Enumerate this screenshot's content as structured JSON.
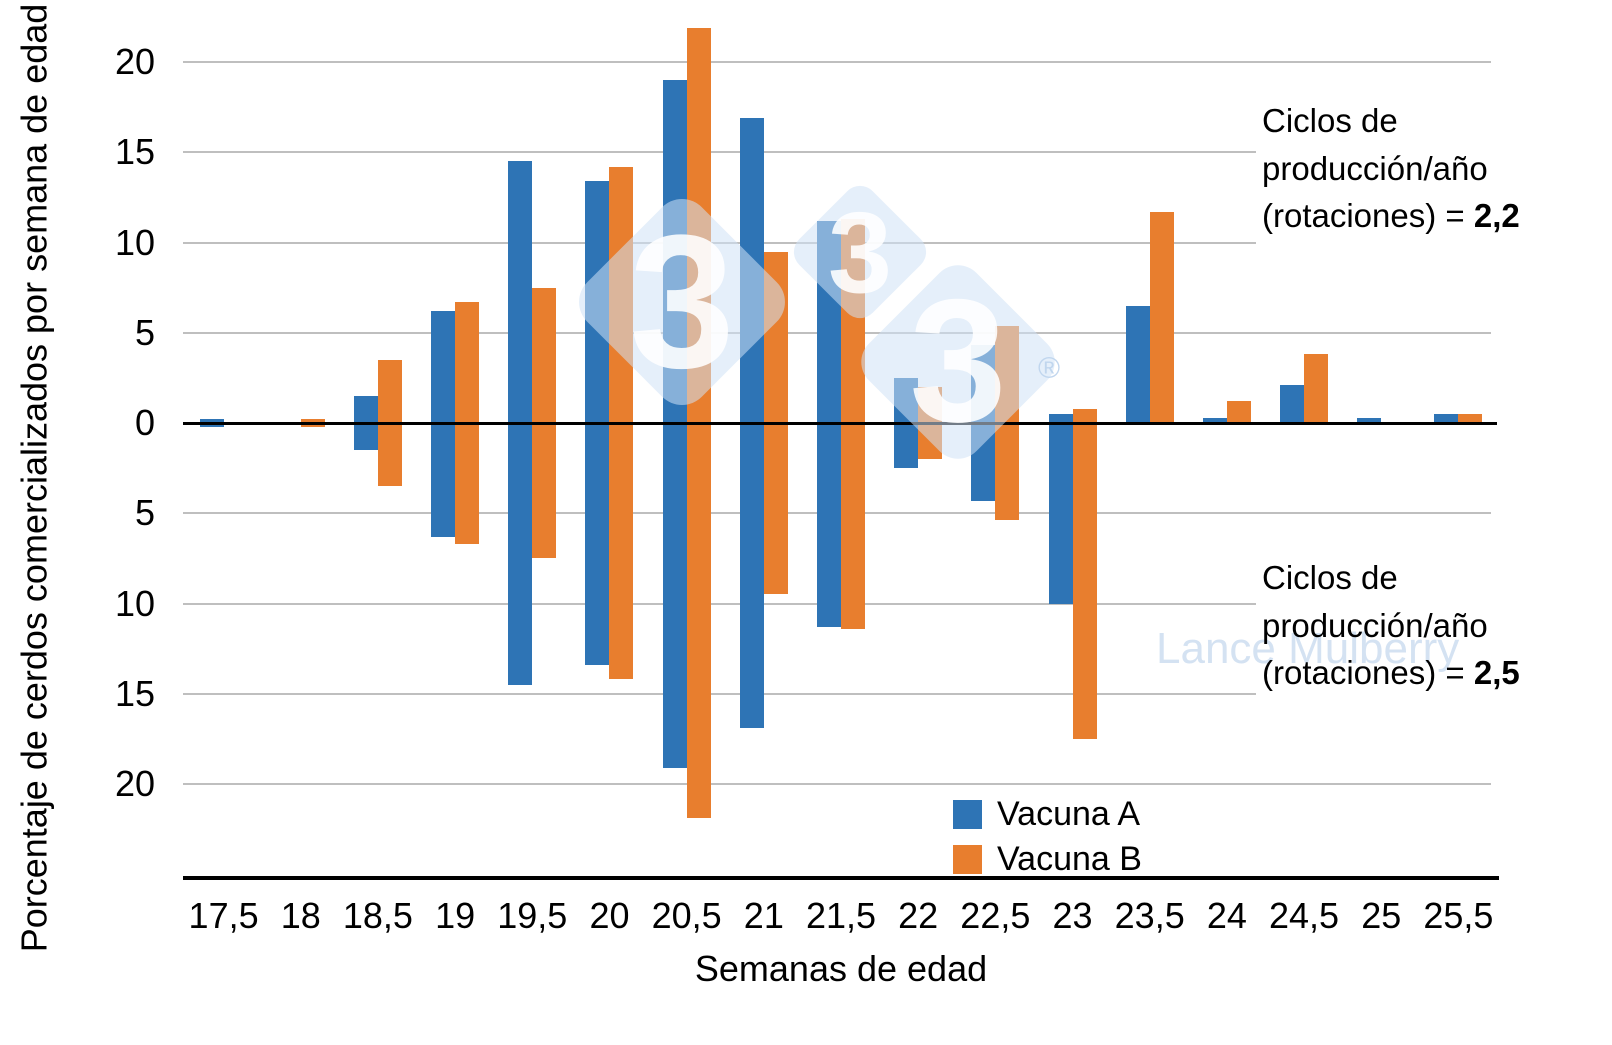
{
  "chart_data": {
    "type": "bar",
    "layout": "mirrored vertical bar chart (population-pyramid style): upper half = 2.2 production cycles/year, lower half = 2.5 production cycles/year",
    "title": "",
    "xlabel": "Semanas de edad",
    "ylabel": "Porcentaje de cerdos comercializados por semana de edad (%)",
    "categories": [
      "17,5",
      "18",
      "18,5",
      "19",
      "19,5",
      "20",
      "20,5",
      "21",
      "21,5",
      "22",
      "22,5",
      "23",
      "23,5",
      "24",
      "24,5",
      "25",
      "25,5"
    ],
    "y_tick_labels": [
      "20",
      "15",
      "10",
      "5",
      "0",
      "5",
      "10",
      "15",
      "20"
    ],
    "y_tick_values": [
      20,
      15,
      10,
      5,
      0,
      -5,
      -10,
      -15,
      -20
    ],
    "ylim_per_half": [
      0,
      22.5
    ],
    "grid": true,
    "legend_position": "bottom-center",
    "series": [
      {
        "name": "Vacuna A",
        "color": "#2E74B5",
        "up_cycle_2_2": [
          0.2,
          0,
          1.5,
          6.2,
          14.5,
          13.4,
          19.0,
          16.9,
          11.2,
          2.5,
          4.3,
          0.5,
          6.5,
          0.3,
          2.1,
          0.3,
          0.5
        ],
        "down_cycle_2_5": [
          0.2,
          0,
          1.5,
          6.3,
          14.5,
          13.4,
          19.1,
          16.9,
          11.3,
          2.5,
          4.3,
          10.0,
          0,
          0,
          0,
          0,
          0
        ]
      },
      {
        "name": "Vacuna B",
        "color": "#E87E2E",
        "up_cycle_2_2": [
          0,
          0.2,
          3.5,
          6.7,
          7.5,
          14.2,
          21.9,
          9.5,
          11.3,
          2.0,
          5.4,
          0.8,
          11.7,
          1.2,
          3.8,
          0,
          0.5
        ],
        "down_cycle_2_5": [
          0,
          0.2,
          3.5,
          6.7,
          7.5,
          14.2,
          21.9,
          9.5,
          11.4,
          2.0,
          5.4,
          17.5,
          0,
          0,
          0,
          0,
          0
        ]
      }
    ]
  },
  "legend": {
    "item_a": "Vacuna A",
    "item_b": "Vacuna B"
  },
  "annotations": {
    "top": {
      "line1": "Ciclos de",
      "line2": "producción/año",
      "line3_prefix": "(rotaciones) = ",
      "value": "2,2"
    },
    "bottom": {
      "line1": "Ciclos de",
      "line2": "producción/año",
      "line3_prefix": "(rotaciones) = ",
      "value": "2,5"
    }
  },
  "watermark": {
    "name": "Lance Mulberry",
    "logo_digit": "3",
    "registered": "®"
  },
  "colors": {
    "series_a_blue": "#2E74B5",
    "series_b_orange": "#E87E2E",
    "gridline_gray": "#BFBFBF",
    "axis_black": "#000000",
    "watermark_light_blue": "#D0E2F5"
  }
}
